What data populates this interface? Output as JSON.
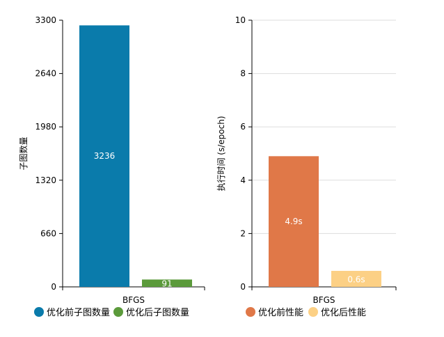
{
  "chart_data": [
    {
      "type": "bar",
      "categories": [
        "BFGS"
      ],
      "ylabel": "子图数量",
      "ylim": [
        0,
        3300
      ],
      "yticks": [
        0,
        660,
        1320,
        1980,
        2640,
        3300
      ],
      "grid": false,
      "legend_position": "bottom-left",
      "series": [
        {
          "name": "优化前子图数量",
          "values": [
            3236
          ],
          "color": "#0a7bab",
          "label": "3236"
        },
        {
          "name": "优化后子图数量",
          "values": [
            91
          ],
          "color": "#5b9a3b",
          "label": "91"
        }
      ]
    },
    {
      "type": "bar",
      "categories": [
        "BFGS"
      ],
      "ylabel": "执行时间 (s/epoch)",
      "ylim": [
        0,
        10
      ],
      "yticks": [
        0,
        2,
        4,
        6,
        8,
        10
      ],
      "grid": true,
      "legend_position": "bottom-left",
      "series": [
        {
          "name": "优化前性能",
          "values": [
            4.9
          ],
          "color": "#e07848",
          "label": "4.9s"
        },
        {
          "name": "优化后性能",
          "values": [
            0.6
          ],
          "color": "#fcd085",
          "label": "0.6s"
        }
      ]
    }
  ]
}
